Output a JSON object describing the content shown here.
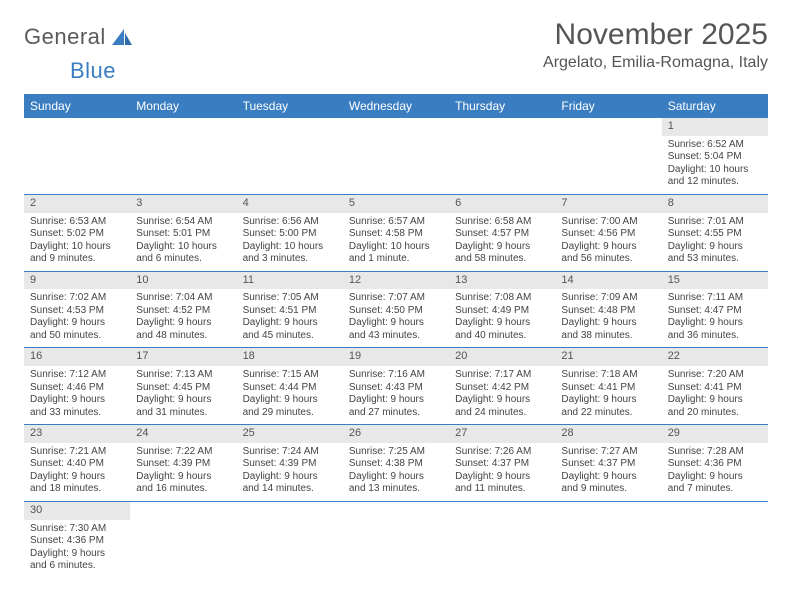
{
  "brand": {
    "word1": "General",
    "word2": "Blue"
  },
  "title": "November 2025",
  "subtitle": "Argelato, Emilia-Romagna, Italy",
  "colors": {
    "header_bg": "#3a7ec1",
    "header_text": "#ffffff",
    "daynum_bg": "#e8e8e8",
    "grid_line": "#3a7ec1",
    "text": "#444444",
    "title_text": "#555555"
  },
  "weekdays": [
    "Sunday",
    "Monday",
    "Tuesday",
    "Wednesday",
    "Thursday",
    "Friday",
    "Saturday"
  ],
  "weeks": [
    [
      null,
      null,
      null,
      null,
      null,
      null,
      {
        "n": "1",
        "sr": "6:52 AM",
        "ss": "5:04 PM",
        "dl1": "10 hours",
        "dl2": "and 12 minutes."
      }
    ],
    [
      {
        "n": "2",
        "sr": "6:53 AM",
        "ss": "5:02 PM",
        "dl1": "10 hours",
        "dl2": "and 9 minutes."
      },
      {
        "n": "3",
        "sr": "6:54 AM",
        "ss": "5:01 PM",
        "dl1": "10 hours",
        "dl2": "and 6 minutes."
      },
      {
        "n": "4",
        "sr": "6:56 AM",
        "ss": "5:00 PM",
        "dl1": "10 hours",
        "dl2": "and 3 minutes."
      },
      {
        "n": "5",
        "sr": "6:57 AM",
        "ss": "4:58 PM",
        "dl1": "10 hours",
        "dl2": "and 1 minute."
      },
      {
        "n": "6",
        "sr": "6:58 AM",
        "ss": "4:57 PM",
        "dl1": "9 hours",
        "dl2": "and 58 minutes."
      },
      {
        "n": "7",
        "sr": "7:00 AM",
        "ss": "4:56 PM",
        "dl1": "9 hours",
        "dl2": "and 56 minutes."
      },
      {
        "n": "8",
        "sr": "7:01 AM",
        "ss": "4:55 PM",
        "dl1": "9 hours",
        "dl2": "and 53 minutes."
      }
    ],
    [
      {
        "n": "9",
        "sr": "7:02 AM",
        "ss": "4:53 PM",
        "dl1": "9 hours",
        "dl2": "and 50 minutes."
      },
      {
        "n": "10",
        "sr": "7:04 AM",
        "ss": "4:52 PM",
        "dl1": "9 hours",
        "dl2": "and 48 minutes."
      },
      {
        "n": "11",
        "sr": "7:05 AM",
        "ss": "4:51 PM",
        "dl1": "9 hours",
        "dl2": "and 45 minutes."
      },
      {
        "n": "12",
        "sr": "7:07 AM",
        "ss": "4:50 PM",
        "dl1": "9 hours",
        "dl2": "and 43 minutes."
      },
      {
        "n": "13",
        "sr": "7:08 AM",
        "ss": "4:49 PM",
        "dl1": "9 hours",
        "dl2": "and 40 minutes."
      },
      {
        "n": "14",
        "sr": "7:09 AM",
        "ss": "4:48 PM",
        "dl1": "9 hours",
        "dl2": "and 38 minutes."
      },
      {
        "n": "15",
        "sr": "7:11 AM",
        "ss": "4:47 PM",
        "dl1": "9 hours",
        "dl2": "and 36 minutes."
      }
    ],
    [
      {
        "n": "16",
        "sr": "7:12 AM",
        "ss": "4:46 PM",
        "dl1": "9 hours",
        "dl2": "and 33 minutes."
      },
      {
        "n": "17",
        "sr": "7:13 AM",
        "ss": "4:45 PM",
        "dl1": "9 hours",
        "dl2": "and 31 minutes."
      },
      {
        "n": "18",
        "sr": "7:15 AM",
        "ss": "4:44 PM",
        "dl1": "9 hours",
        "dl2": "and 29 minutes."
      },
      {
        "n": "19",
        "sr": "7:16 AM",
        "ss": "4:43 PM",
        "dl1": "9 hours",
        "dl2": "and 27 minutes."
      },
      {
        "n": "20",
        "sr": "7:17 AM",
        "ss": "4:42 PM",
        "dl1": "9 hours",
        "dl2": "and 24 minutes."
      },
      {
        "n": "21",
        "sr": "7:18 AM",
        "ss": "4:41 PM",
        "dl1": "9 hours",
        "dl2": "and 22 minutes."
      },
      {
        "n": "22",
        "sr": "7:20 AM",
        "ss": "4:41 PM",
        "dl1": "9 hours",
        "dl2": "and 20 minutes."
      }
    ],
    [
      {
        "n": "23",
        "sr": "7:21 AM",
        "ss": "4:40 PM",
        "dl1": "9 hours",
        "dl2": "and 18 minutes."
      },
      {
        "n": "24",
        "sr": "7:22 AM",
        "ss": "4:39 PM",
        "dl1": "9 hours",
        "dl2": "and 16 minutes."
      },
      {
        "n": "25",
        "sr": "7:24 AM",
        "ss": "4:39 PM",
        "dl1": "9 hours",
        "dl2": "and 14 minutes."
      },
      {
        "n": "26",
        "sr": "7:25 AM",
        "ss": "4:38 PM",
        "dl1": "9 hours",
        "dl2": "and 13 minutes."
      },
      {
        "n": "27",
        "sr": "7:26 AM",
        "ss": "4:37 PM",
        "dl1": "9 hours",
        "dl2": "and 11 minutes."
      },
      {
        "n": "28",
        "sr": "7:27 AM",
        "ss": "4:37 PM",
        "dl1": "9 hours",
        "dl2": "and 9 minutes."
      },
      {
        "n": "29",
        "sr": "7:28 AM",
        "ss": "4:36 PM",
        "dl1": "9 hours",
        "dl2": "and 7 minutes."
      }
    ],
    [
      {
        "n": "30",
        "sr": "7:30 AM",
        "ss": "4:36 PM",
        "dl1": "9 hours",
        "dl2": "and 6 minutes."
      },
      null,
      null,
      null,
      null,
      null,
      null
    ]
  ],
  "labels": {
    "sunrise": "Sunrise:",
    "sunset": "Sunset:",
    "daylight": "Daylight:"
  }
}
